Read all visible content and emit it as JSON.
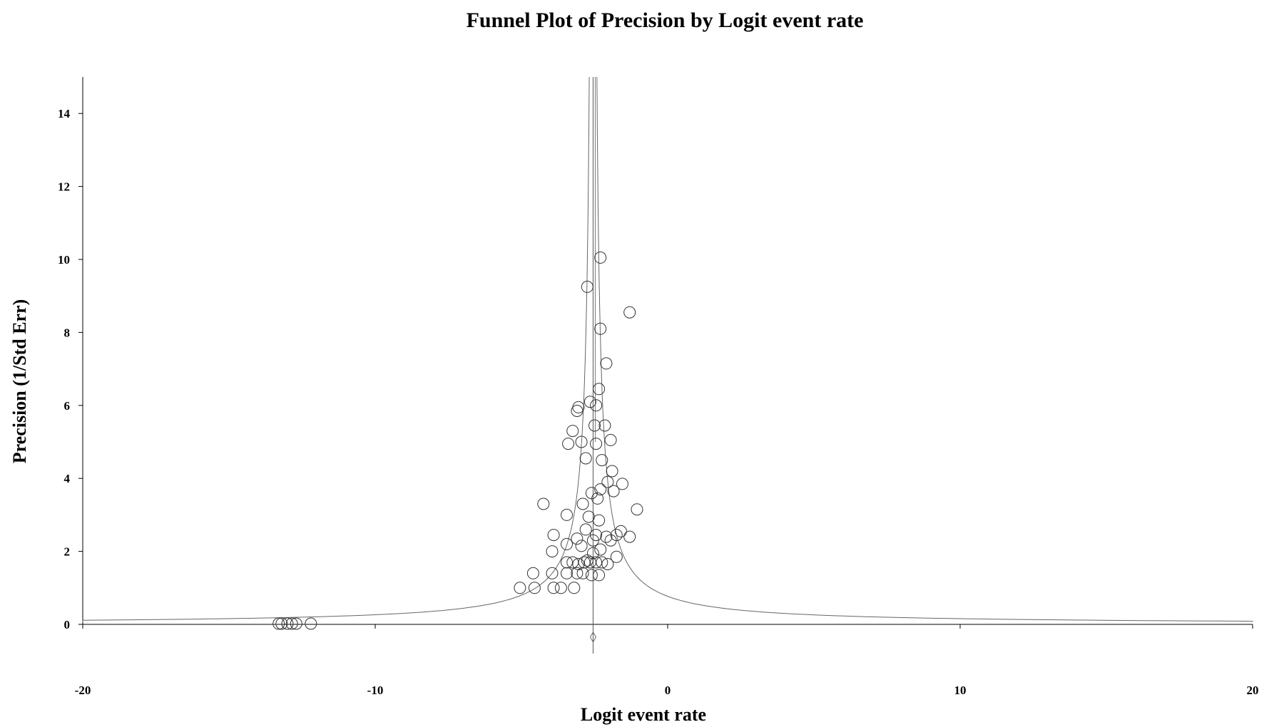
{
  "chart_data": {
    "type": "scatter",
    "title": "Funnel Plot of Precision by Logit event rate",
    "xlabel": "Logit event rate",
    "ylabel": "Precision (1/Std Err)",
    "xlim": [
      -20,
      20
    ],
    "ylim": [
      0,
      15
    ],
    "x_ticks": [
      "-20",
      "-10",
      "0",
      "10",
      "20"
    ],
    "y_ticks": [
      "0",
      "2",
      "4",
      "6",
      "8",
      "10",
      "12",
      "14"
    ],
    "grid": false,
    "legend": "none",
    "pooled_estimate": -2.55,
    "funnel_lines": "pseudo 95% confidence limits",
    "summary_marker": "diamond",
    "series": [
      {
        "points": [
          [
            -2.3,
            10.05
          ],
          [
            -2.75,
            9.25
          ],
          [
            -1.3,
            8.55
          ],
          [
            -2.3,
            8.1
          ],
          [
            -2.1,
            7.15
          ],
          [
            -2.35,
            6.45
          ],
          [
            -3.05,
            5.95
          ],
          [
            -3.1,
            5.85
          ],
          [
            -2.45,
            6.0
          ],
          [
            -2.65,
            6.1
          ],
          [
            -2.5,
            5.45
          ],
          [
            -2.15,
            5.45
          ],
          [
            -3.25,
            5.3
          ],
          [
            -2.95,
            5.0
          ],
          [
            -3.4,
            4.95
          ],
          [
            -2.45,
            4.95
          ],
          [
            -1.95,
            5.05
          ],
          [
            -2.25,
            4.5
          ],
          [
            -2.8,
            4.55
          ],
          [
            -1.9,
            4.2
          ],
          [
            -2.05,
            3.9
          ],
          [
            -1.55,
            3.85
          ],
          [
            -2.3,
            3.7
          ],
          [
            -1.85,
            3.65
          ],
          [
            -2.6,
            3.6
          ],
          [
            -2.4,
            3.45
          ],
          [
            -2.9,
            3.3
          ],
          [
            -4.25,
            3.3
          ],
          [
            -1.05,
            3.15
          ],
          [
            -3.45,
            3.0
          ],
          [
            -2.7,
            2.95
          ],
          [
            -2.35,
            2.85
          ],
          [
            -2.8,
            2.6
          ],
          [
            -2.45,
            2.45
          ],
          [
            -1.6,
            2.55
          ],
          [
            -1.75,
            2.45
          ],
          [
            -1.3,
            2.4
          ],
          [
            -2.1,
            2.4
          ],
          [
            -1.95,
            2.3
          ],
          [
            -3.1,
            2.35
          ],
          [
            -2.55,
            2.3
          ],
          [
            -3.9,
            2.45
          ],
          [
            -3.95,
            2.0
          ],
          [
            -3.45,
            2.2
          ],
          [
            -2.95,
            2.15
          ],
          [
            -2.3,
            2.05
          ],
          [
            -2.55,
            1.95
          ],
          [
            -1.75,
            1.85
          ],
          [
            -2.75,
            1.75
          ],
          [
            -3.45,
            1.7
          ],
          [
            -3.25,
            1.7
          ],
          [
            -3.05,
            1.65
          ],
          [
            -2.85,
            1.7
          ],
          [
            -2.65,
            1.7
          ],
          [
            -2.45,
            1.7
          ],
          [
            -2.25,
            1.7
          ],
          [
            -2.05,
            1.65
          ],
          [
            -3.1,
            1.4
          ],
          [
            -2.9,
            1.4
          ],
          [
            -2.6,
            1.35
          ],
          [
            -2.35,
            1.35
          ],
          [
            -3.45,
            1.4
          ],
          [
            -3.95,
            1.4
          ],
          [
            -4.6,
            1.4
          ],
          [
            -3.9,
            1.0
          ],
          [
            -3.65,
            1.0
          ],
          [
            -3.2,
            1.0
          ],
          [
            -4.55,
            1.0
          ],
          [
            -5.05,
            1.0
          ],
          [
            -13.3,
            0.02
          ],
          [
            -13.2,
            0.02
          ],
          [
            -13.0,
            0.02
          ],
          [
            -12.85,
            0.02
          ],
          [
            -12.7,
            0.02
          ],
          [
            -12.2,
            0.02
          ]
        ]
      }
    ]
  }
}
